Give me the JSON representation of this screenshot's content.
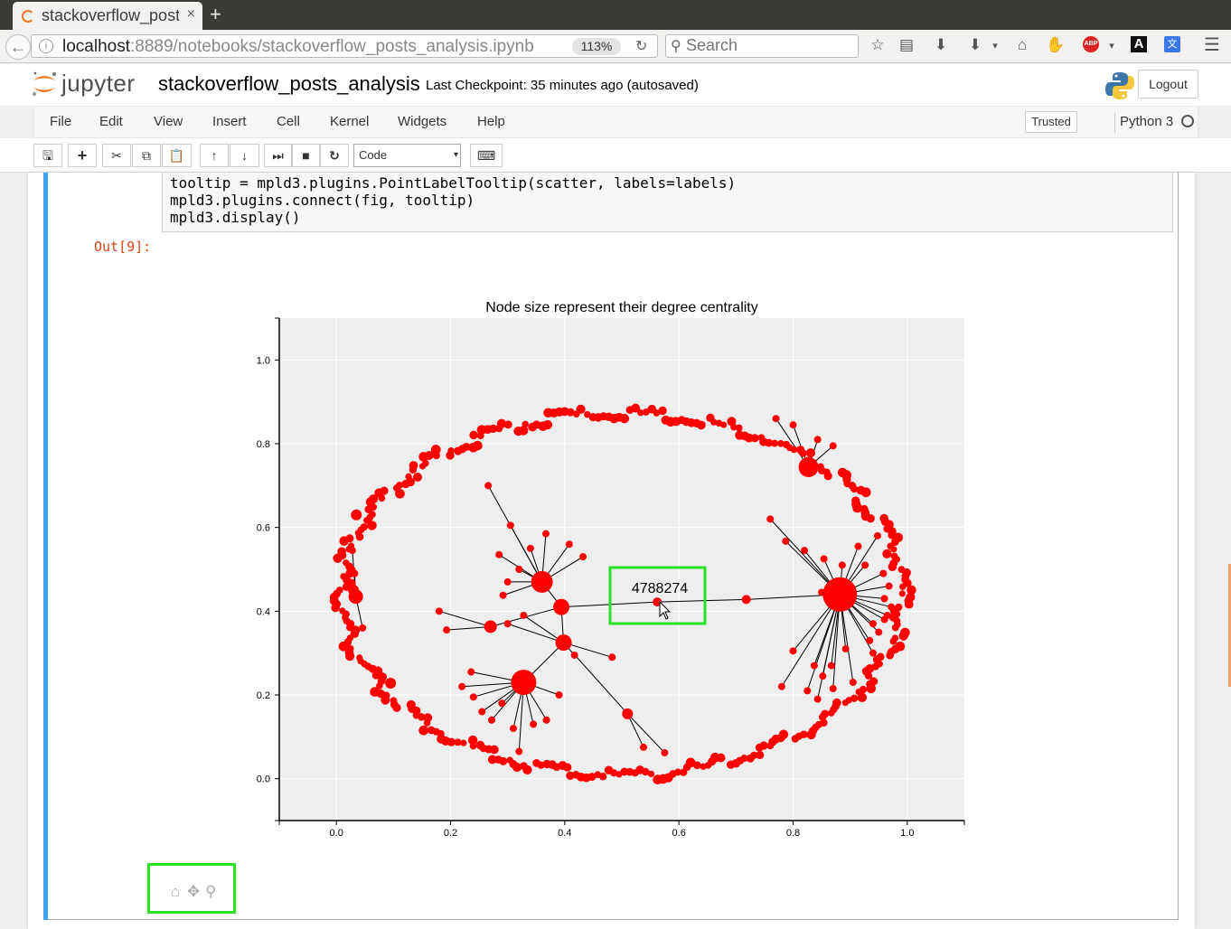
{
  "browser": {
    "tab_title": "stackoverflow_posts_analysis",
    "tab_close": "×",
    "new_tab": "+",
    "url_host": "localhost",
    "url_rest": ":8889/notebooks/stackoverflow_posts_analysis.ipynb",
    "zoom": "113%",
    "search_placeholder": "Search"
  },
  "jupyter": {
    "wordmark": "jupyter",
    "notebook_name": "stackoverflow_posts_analysis",
    "checkpoint": "Last Checkpoint: 35 minutes ago (autosaved)",
    "logout_label": "Logout",
    "menu": [
      "File",
      "Edit",
      "View",
      "Insert",
      "Cell",
      "Kernel",
      "Widgets",
      "Help"
    ],
    "trusted_label": "Trusted",
    "kernel_name": "Python 3",
    "cell_type": "Code"
  },
  "cell": {
    "code_lines": [
      "tooltip = mpld3.plugins.PointLabelTooltip(scatter, labels=labels)",
      "mpld3.plugins.connect(fig, tooltip)",
      "mpld3.display()"
    ],
    "out_prompt": "Out[9]:"
  },
  "colors": {
    "node": "#ff0000",
    "plot_bg": "#eeeeee",
    "highlight": "#26e326",
    "cell_bar": "#42a5f5"
  },
  "chart_data": {
    "type": "scatter",
    "title": "Node size represent their degree centrality",
    "xlabel": "",
    "ylabel": "",
    "xlim": [
      -0.1,
      1.1
    ],
    "ylim": [
      -0.1,
      1.1
    ],
    "xticks": [
      "0.0",
      "0.2",
      "0.4",
      "0.6",
      "0.8",
      "1.0"
    ],
    "yticks": [
      "0.0",
      "0.2",
      "0.4",
      "0.6",
      "0.8",
      "1.0"
    ],
    "grid": true,
    "tooltip_label": "4788274",
    "hubs": [
      {
        "x": 0.882,
        "y": 0.44,
        "r": 19
      },
      {
        "x": 0.827,
        "y": 0.744,
        "r": 11
      },
      {
        "x": 0.36,
        "y": 0.47,
        "r": 12
      },
      {
        "x": 0.394,
        "y": 0.41,
        "r": 9
      },
      {
        "x": 0.398,
        "y": 0.325,
        "r": 9
      },
      {
        "x": 0.328,
        "y": 0.23,
        "r": 14
      },
      {
        "x": 0.27,
        "y": 0.363,
        "r": 7
      },
      {
        "x": 0.51,
        "y": 0.155,
        "r": 6
      },
      {
        "x": 0.034,
        "y": 0.435,
        "r": 8
      }
    ],
    "links": [
      [
        0.394,
        0.41,
        0.562,
        0.422
      ],
      [
        0.562,
        0.422,
        0.718,
        0.428
      ],
      [
        0.718,
        0.428,
        0.882,
        0.44
      ],
      [
        0.394,
        0.41,
        0.36,
        0.47
      ],
      [
        0.394,
        0.41,
        0.398,
        0.325
      ],
      [
        0.398,
        0.325,
        0.328,
        0.23
      ],
      [
        0.394,
        0.41,
        0.27,
        0.363
      ],
      [
        0.418,
        0.295,
        0.51,
        0.155
      ]
    ],
    "cluster_nodes": [
      [
        0.882,
        0.44,
        0.76,
        0.62
      ],
      [
        0.882,
        0.44,
        0.787,
        0.567
      ],
      [
        0.882,
        0.44,
        0.82,
        0.545
      ],
      [
        0.882,
        0.44,
        0.854,
        0.525
      ],
      [
        0.882,
        0.44,
        0.886,
        0.51
      ],
      [
        0.882,
        0.44,
        0.914,
        0.555
      ],
      [
        0.882,
        0.44,
        0.948,
        0.58
      ],
      [
        0.882,
        0.44,
        0.926,
        0.51
      ],
      [
        0.882,
        0.44,
        0.958,
        0.49
      ],
      [
        0.882,
        0.44,
        0.968,
        0.46
      ],
      [
        0.882,
        0.44,
        0.96,
        0.43
      ],
      [
        0.882,
        0.44,
        0.972,
        0.41
      ],
      [
        0.882,
        0.44,
        0.96,
        0.38
      ],
      [
        0.882,
        0.44,
        0.94,
        0.37
      ],
      [
        0.882,
        0.44,
        0.95,
        0.35
      ],
      [
        0.882,
        0.44,
        0.934,
        0.33
      ],
      [
        0.882,
        0.44,
        0.892,
        0.31
      ],
      [
        0.882,
        0.44,
        0.867,
        0.27
      ],
      [
        0.882,
        0.44,
        0.852,
        0.245
      ],
      [
        0.882,
        0.44,
        0.837,
        0.27
      ],
      [
        0.882,
        0.44,
        0.85,
        0.445
      ],
      [
        0.882,
        0.44,
        0.8,
        0.305
      ],
      [
        0.882,
        0.44,
        0.78,
        0.22
      ],
      [
        0.882,
        0.44,
        0.825,
        0.21
      ],
      [
        0.882,
        0.44,
        0.843,
        0.19
      ],
      [
        0.882,
        0.44,
        0.87,
        0.215
      ],
      [
        0.882,
        0.44,
        0.905,
        0.23
      ],
      [
        0.882,
        0.44,
        0.94,
        0.3
      ],
      [
        0.882,
        0.44,
        0.965,
        0.39
      ],
      [
        0.827,
        0.744,
        0.77,
        0.86
      ],
      [
        0.827,
        0.744,
        0.8,
        0.845
      ],
      [
        0.827,
        0.744,
        0.843,
        0.81
      ],
      [
        0.827,
        0.744,
        0.87,
        0.795
      ],
      [
        0.36,
        0.47,
        0.266,
        0.7
      ],
      [
        0.36,
        0.47,
        0.305,
        0.605
      ],
      [
        0.36,
        0.47,
        0.285,
        0.535
      ],
      [
        0.36,
        0.47,
        0.34,
        0.55
      ],
      [
        0.36,
        0.47,
        0.367,
        0.585
      ],
      [
        0.36,
        0.47,
        0.408,
        0.56
      ],
      [
        0.36,
        0.47,
        0.432,
        0.53
      ],
      [
        0.36,
        0.47,
        0.3,
        0.47
      ],
      [
        0.36,
        0.47,
        0.292,
        0.438
      ],
      [
        0.36,
        0.47,
        0.32,
        0.5
      ],
      [
        0.27,
        0.363,
        0.18,
        0.4
      ],
      [
        0.27,
        0.363,
        0.193,
        0.355
      ],
      [
        0.398,
        0.325,
        0.3,
        0.37
      ],
      [
        0.398,
        0.325,
        0.328,
        0.39
      ],
      [
        0.398,
        0.325,
        0.417,
        0.295
      ],
      [
        0.398,
        0.325,
        0.483,
        0.29
      ],
      [
        0.328,
        0.23,
        0.22,
        0.22
      ],
      [
        0.328,
        0.23,
        0.24,
        0.195
      ],
      [
        0.328,
        0.23,
        0.255,
        0.16
      ],
      [
        0.328,
        0.23,
        0.272,
        0.14
      ],
      [
        0.328,
        0.23,
        0.31,
        0.12
      ],
      [
        0.328,
        0.23,
        0.32,
        0.065
      ],
      [
        0.328,
        0.23,
        0.345,
        0.13
      ],
      [
        0.328,
        0.23,
        0.368,
        0.14
      ],
      [
        0.328,
        0.23,
        0.39,
        0.2
      ],
      [
        0.328,
        0.23,
        0.29,
        0.18
      ],
      [
        0.328,
        0.23,
        0.236,
        0.255
      ],
      [
        0.51,
        0.155,
        0.538,
        0.075
      ],
      [
        0.51,
        0.155,
        0.575,
        0.062
      ],
      [
        0.034,
        0.435,
        0.028,
        0.545
      ],
      [
        0.034,
        0.435,
        0.032,
        0.49
      ],
      [
        0.034,
        0.435,
        0.046,
        0.36
      ]
    ]
  },
  "mpld3_toolbar": {
    "home": "⌂",
    "pan": "✥",
    "zoom": "⚲"
  }
}
